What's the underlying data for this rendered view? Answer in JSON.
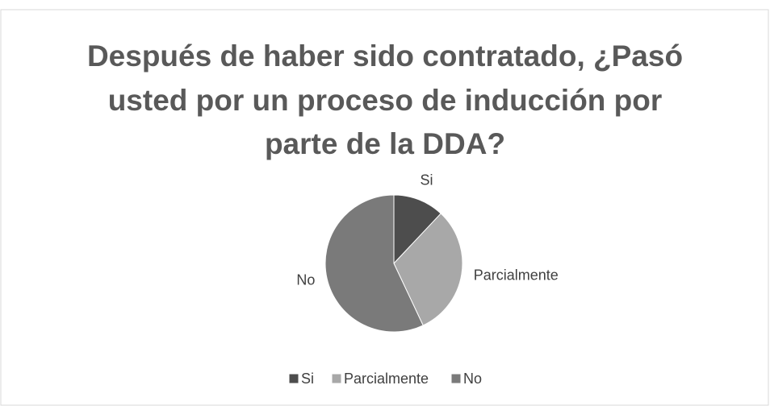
{
  "chart_data": {
    "type": "pie",
    "title": [
      "Después de haber sido contratado, ¿Pasó",
      "usted por un proceso de inducción por",
      "parte de la DDA?"
    ],
    "categories": [
      "Si",
      "Parcialmente",
      "No"
    ],
    "values": [
      12,
      31,
      57
    ],
    "colors": [
      "#4d4d4d",
      "#a8a8a8",
      "#7a7a7a"
    ],
    "legend": "bottom"
  }
}
